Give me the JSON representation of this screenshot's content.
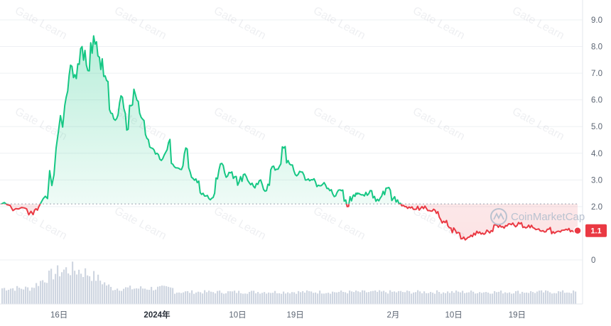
{
  "chart_data": {
    "type": "line",
    "yticks": [
      "9.0",
      "8.0",
      "7.0",
      "6.0",
      "5.0",
      "4.0",
      "3.0",
      "2.0",
      "0"
    ],
    "ylim": [
      -1.0,
      9.5
    ],
    "xticks": [
      {
        "label": "16日",
        "x": 0.1
      },
      {
        "label": "2024年",
        "x": 0.27
      },
      {
        "label": "10日",
        "x": 0.41
      },
      {
        "label": "19日",
        "x": 0.51
      },
      {
        "label": "2月",
        "x": 0.68
      },
      {
        "label": "10日",
        "x": 0.785
      },
      {
        "label": "19日",
        "x": 0.895
      }
    ],
    "baseline": 2.1,
    "current_price_label": "1.1",
    "watermark": "Gate Learn",
    "brand": "CoinMarketCap",
    "colors": {
      "up": "#16c784",
      "down": "#ea3943",
      "grid": "#eef0f3",
      "volume": "#cfd6e1"
    },
    "x": [
      0.0,
      0.02,
      0.04,
      0.055,
      0.065,
      0.08,
      0.095,
      0.11,
      0.12,
      0.13,
      0.14,
      0.15,
      0.16,
      0.17,
      0.18,
      0.19,
      0.2,
      0.21,
      0.22,
      0.23,
      0.24,
      0.25,
      0.26,
      0.27,
      0.28,
      0.29,
      0.3,
      0.31,
      0.32,
      0.33,
      0.34,
      0.35,
      0.36,
      0.37,
      0.38,
      0.39,
      0.4,
      0.41,
      0.42,
      0.43,
      0.44,
      0.45,
      0.46,
      0.47,
      0.48,
      0.49,
      0.5,
      0.51,
      0.52,
      0.53,
      0.54,
      0.55,
      0.56,
      0.57,
      0.58,
      0.59,
      0.6,
      0.61,
      0.615,
      0.62,
      0.63,
      0.64,
      0.65,
      0.66,
      0.67,
      0.68,
      0.69,
      0.7,
      0.71,
      0.72,
      0.73,
      0.74,
      0.75,
      0.76,
      0.77,
      0.78,
      0.79,
      0.8,
      0.81,
      0.82,
      0.83,
      0.84,
      0.85,
      0.86,
      0.87,
      0.88,
      0.89,
      0.9,
      0.91,
      0.92,
      0.93,
      0.94,
      0.95,
      0.96,
      0.97,
      0.98,
      0.99,
      1.0
    ],
    "y": [
      2.1,
      1.85,
      1.95,
      1.7,
      2.0,
      2.3,
      4.2,
      5.8,
      7.3,
      6.8,
      8.0,
      7.1,
      8.4,
      7.6,
      6.9,
      5.5,
      5.3,
      6.1,
      4.9,
      6.4,
      5.5,
      4.7,
      4.2,
      4.0,
      3.8,
      4.4,
      3.5,
      3.4,
      4.2,
      3.1,
      2.9,
      2.5,
      2.3,
      2.5,
      3.6,
      3.1,
      3.3,
      2.8,
      3.2,
      2.9,
      2.7,
      3.0,
      2.6,
      3.5,
      3.4,
      4.2,
      3.6,
      3.2,
      3.3,
      3.0,
      3.0,
      2.8,
      2.9,
      2.6,
      2.4,
      2.6,
      2.0,
      2.4,
      2.5,
      2.5,
      2.4,
      2.6,
      2.2,
      2.4,
      2.7,
      2.3,
      2.1,
      2.0,
      1.95,
      1.9,
      2.0,
      1.85,
      1.9,
      1.6,
      1.4,
      1.2,
      1.0,
      0.8,
      0.85,
      1.0,
      1.05,
      1.0,
      1.1,
      1.3,
      1.25,
      1.35,
      1.3,
      1.35,
      1.2,
      1.3,
      1.15,
      1.1,
      1.15,
      1.0,
      1.05,
      1.15,
      1.1,
      1.1
    ]
  }
}
